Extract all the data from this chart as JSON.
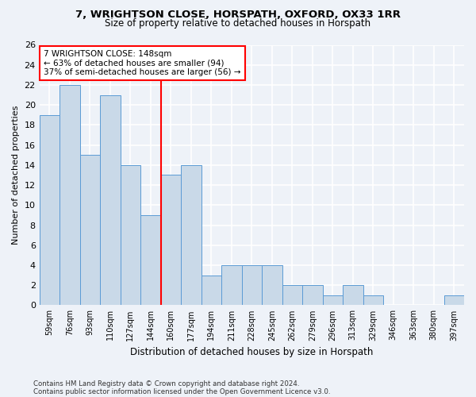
{
  "title1": "7, WRIGHTSON CLOSE, HORSPATH, OXFORD, OX33 1RR",
  "title2": "Size of property relative to detached houses in Horspath",
  "xlabel": "Distribution of detached houses by size in Horspath",
  "ylabel": "Number of detached properties",
  "bin_labels": [
    "59sqm",
    "76sqm",
    "93sqm",
    "110sqm",
    "127sqm",
    "144sqm",
    "160sqm",
    "177sqm",
    "194sqm",
    "211sqm",
    "228sqm",
    "245sqm",
    "262sqm",
    "279sqm",
    "296sqm",
    "313sqm",
    "329sqm",
    "346sqm",
    "363sqm",
    "380sqm",
    "397sqm"
  ],
  "bar_heights": [
    19,
    22,
    15,
    21,
    14,
    9,
    13,
    14,
    3,
    4,
    4,
    4,
    2,
    2,
    1,
    2,
    1,
    0,
    0,
    0,
    1
  ],
  "bar_color": "#c9d9e8",
  "bar_edge_color": "#5b9bd5",
  "vline_x_index": 5.5,
  "annotation_line1": "7 WRIGHTSON CLOSE: 148sqm",
  "annotation_line2": "← 63% of detached houses are smaller (94)",
  "annotation_line3": "37% of semi-detached houses are larger (56) →",
  "annotation_box_color": "white",
  "annotation_box_edge": "red",
  "vline_color": "red",
  "ylim": [
    0,
    26
  ],
  "yticks": [
    0,
    2,
    4,
    6,
    8,
    10,
    12,
    14,
    16,
    18,
    20,
    22,
    24,
    26
  ],
  "footnote1": "Contains HM Land Registry data © Crown copyright and database right 2024.",
  "footnote2": "Contains public sector information licensed under the Open Government Licence v3.0.",
  "bg_color": "#eef2f8",
  "grid_color": "white"
}
